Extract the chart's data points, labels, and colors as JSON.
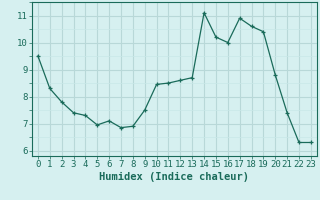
{
  "x": [
    0,
    1,
    2,
    3,
    4,
    5,
    6,
    7,
    8,
    9,
    10,
    11,
    12,
    13,
    14,
    15,
    16,
    17,
    18,
    19,
    20,
    21,
    22,
    23
  ],
  "y": [
    9.5,
    8.3,
    7.8,
    7.4,
    7.3,
    6.95,
    7.1,
    6.85,
    6.9,
    7.5,
    8.45,
    8.5,
    8.6,
    8.7,
    11.1,
    10.2,
    10.0,
    10.9,
    10.6,
    10.4,
    8.8,
    7.4,
    6.3,
    6.3
  ],
  "line_color": "#1a6b5a",
  "marker": "+",
  "marker_size": 3,
  "bg_color": "#d6f0f0",
  "grid_major_color": "#b8d8d8",
  "grid_minor_color": "#c8e8e8",
  "xlabel": "Humidex (Indice chaleur)",
  "xlim": [
    -0.5,
    23.5
  ],
  "ylim": [
    5.8,
    11.5
  ],
  "yticks": [
    6,
    7,
    8,
    9,
    10,
    11
  ],
  "xticks": [
    0,
    1,
    2,
    3,
    4,
    5,
    6,
    7,
    8,
    9,
    10,
    11,
    12,
    13,
    14,
    15,
    16,
    17,
    18,
    19,
    20,
    21,
    22,
    23
  ],
  "tick_color": "#1a6b5a",
  "label_color": "#1a6b5a",
  "spine_color": "#1a6b5a",
  "font_size": 6.5,
  "xlabel_fontsize": 7.5
}
